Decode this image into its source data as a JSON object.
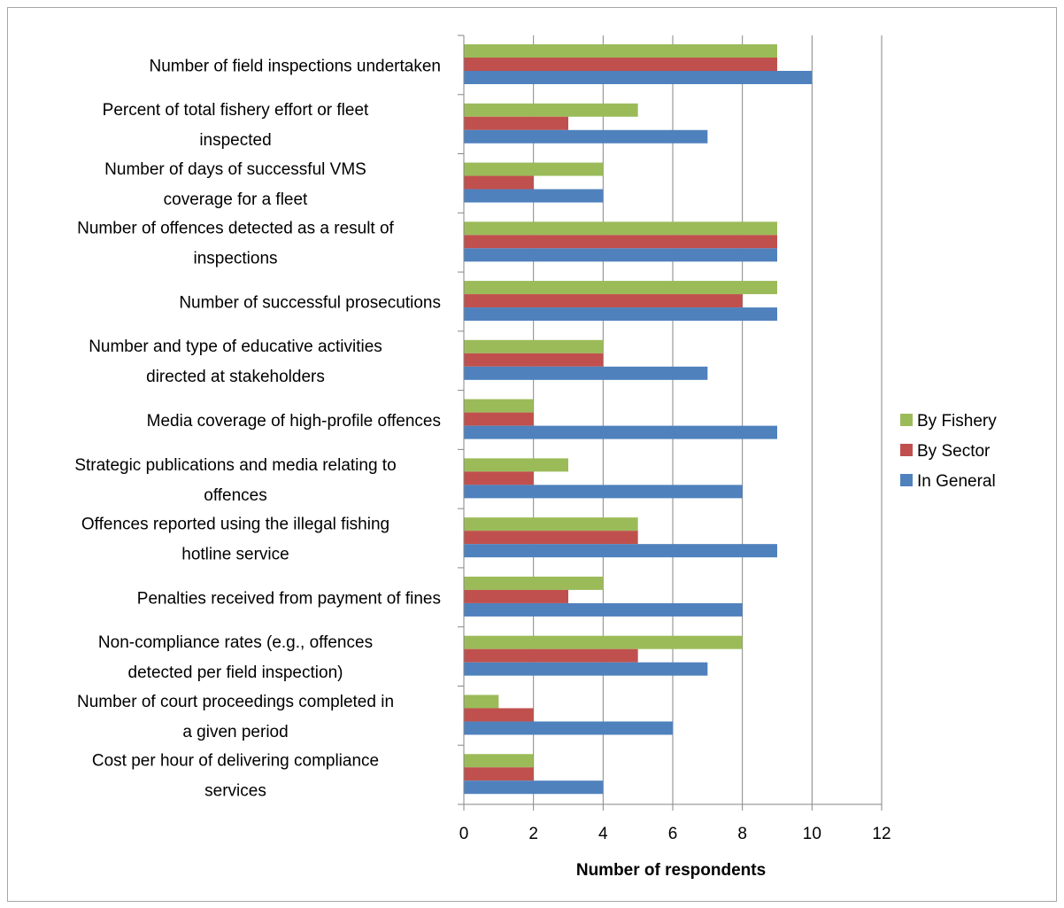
{
  "chart_data": {
    "type": "bar",
    "orientation": "horizontal",
    "title": "",
    "xlabel": "Number of respondents",
    "ylabel": "",
    "xlim": [
      0,
      12
    ],
    "xticks": [
      0,
      2,
      4,
      6,
      8,
      10,
      12
    ],
    "grid": "vertical",
    "legend_placement": "right",
    "categories": [
      [
        "Number of field inspections undertaken"
      ],
      [
        "Percent of total fishery effort or fleet",
        "inspected"
      ],
      [
        "Number of days of successful VMS",
        "coverage for a fleet"
      ],
      [
        "Number of offences detected as a result of",
        "inspections"
      ],
      [
        "Number of successful prosecutions"
      ],
      [
        "Number and type of educative activities",
        "directed at stakeholders"
      ],
      [
        "Media coverage of high-profile offences"
      ],
      [
        "Strategic publications and media relating to",
        "offences"
      ],
      [
        "Offences reported using the illegal fishing",
        "hotline service"
      ],
      [
        "Penalties received from payment of fines"
      ],
      [
        "Non-compliance rates (e.g., offences",
        "detected per field inspection)"
      ],
      [
        "Number of court proceedings completed in",
        "a given period"
      ],
      [
        "Cost per hour of delivering compliance",
        "services"
      ]
    ],
    "series": [
      {
        "name": "By Fishery",
        "color": "#9bbb59",
        "values": [
          9,
          5,
          4,
          9,
          9,
          4,
          2,
          3,
          5,
          4,
          8,
          1,
          2
        ]
      },
      {
        "name": "By Sector",
        "color": "#c0504d",
        "values": [
          9,
          3,
          2,
          9,
          8,
          4,
          2,
          2,
          5,
          3,
          5,
          2,
          2
        ]
      },
      {
        "name": "In General",
        "color": "#4f81bd",
        "values": [
          10,
          7,
          4,
          9,
          9,
          7,
          9,
          8,
          9,
          8,
          7,
          6,
          4
        ]
      }
    ]
  }
}
